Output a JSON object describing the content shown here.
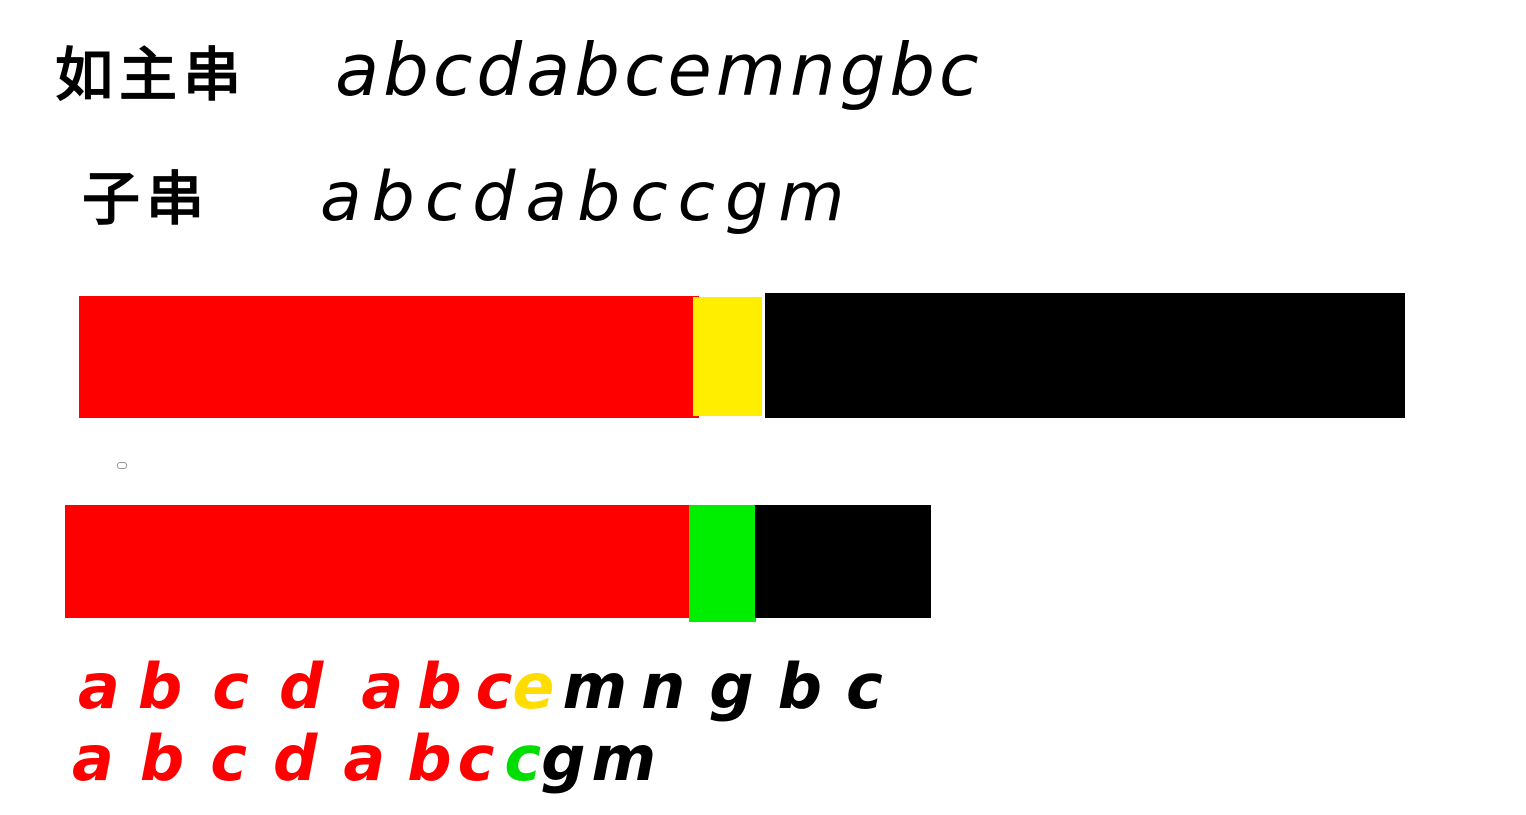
{
  "labels": {
    "main_string_label": "如主串",
    "sub_string_label": "子串"
  },
  "main_string": [
    "a",
    "b",
    "c",
    "d",
    "a",
    "b",
    "c",
    "e",
    "m",
    "n",
    "g",
    "b",
    "c"
  ],
  "sub_string": [
    "a",
    "b",
    "c",
    "d",
    "a",
    "b",
    "c",
    "c",
    "g",
    "m"
  ],
  "colors": {
    "matched": "#ff0000",
    "main_mismatch": "#ffee00",
    "sub_mismatch": "#00ee00",
    "remaining": "#000000"
  },
  "comparison": {
    "main": [
      {
        "ch": "a",
        "color": "#ff0000"
      },
      {
        "ch": "b",
        "color": "#ff0000"
      },
      {
        "ch": "c",
        "color": "#ff0000"
      },
      {
        "ch": "d",
        "color": "#ff0000"
      },
      {
        "ch": "a",
        "color": "#ff0000"
      },
      {
        "ch": "b",
        "color": "#ff0000"
      },
      {
        "ch": "c",
        "color": "#ff0000"
      },
      {
        "ch": "e",
        "color": "#ffdd00"
      },
      {
        "ch": "m",
        "color": "#000000"
      },
      {
        "ch": "n",
        "color": "#000000"
      },
      {
        "ch": "g",
        "color": "#000000"
      },
      {
        "ch": "b",
        "color": "#000000"
      },
      {
        "ch": "c",
        "color": "#000000"
      }
    ],
    "sub": [
      {
        "ch": "a",
        "color": "#ff0000"
      },
      {
        "ch": "b",
        "color": "#ff0000"
      },
      {
        "ch": "c",
        "color": "#ff0000"
      },
      {
        "ch": "d",
        "color": "#ff0000"
      },
      {
        "ch": "a",
        "color": "#ff0000"
      },
      {
        "ch": "b",
        "color": "#ff0000"
      },
      {
        "ch": "c",
        "color": "#ff0000"
      },
      {
        "ch": "c",
        "color": "#00dd00"
      },
      {
        "ch": "g",
        "color": "#000000"
      },
      {
        "ch": "m",
        "color": "#000000"
      }
    ]
  }
}
